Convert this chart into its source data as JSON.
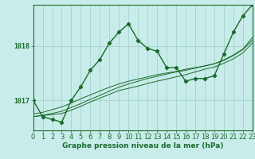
{
  "title": "Graphe pression niveau de la mer (hPa)",
  "bg_color": "#c8ecea",
  "grid_color": "#9dcec8",
  "line_color": "#1a6b2a",
  "xlim": [
    0,
    23
  ],
  "ylim": [
    1016.45,
    1018.75
  ],
  "yticks": [
    1017,
    1018
  ],
  "xticks": [
    0,
    1,
    2,
    3,
    4,
    5,
    6,
    7,
    8,
    9,
    10,
    11,
    12,
    13,
    14,
    15,
    16,
    17,
    18,
    19,
    20,
    21,
    22,
    23
  ],
  "series_main": [
    1017.0,
    1016.7,
    1016.65,
    1016.6,
    1017.0,
    1017.25,
    1017.55,
    1017.75,
    1018.05,
    1018.25,
    1018.4,
    1018.1,
    1017.95,
    1017.9,
    1017.6,
    1017.6,
    1017.35,
    1017.4,
    1017.4,
    1017.45,
    1017.85,
    1018.25,
    1018.55,
    1018.75
  ],
  "series_straight": [
    [
      1016.7,
      1016.72,
      1016.74,
      1016.76,
      1016.82,
      1016.89,
      1016.97,
      1017.04,
      1017.11,
      1017.18,
      1017.22,
      1017.26,
      1017.31,
      1017.35,
      1017.39,
      1017.43,
      1017.47,
      1017.52,
      1017.57,
      1017.61,
      1017.68,
      1017.76,
      1017.87,
      1018.05
    ],
    [
      1016.7,
      1016.73,
      1016.76,
      1016.8,
      1016.87,
      1016.94,
      1017.02,
      1017.09,
      1017.17,
      1017.24,
      1017.3,
      1017.35,
      1017.4,
      1017.44,
      1017.48,
      1017.52,
      1017.55,
      1017.59,
      1017.63,
      1017.67,
      1017.74,
      1017.83,
      1017.94,
      1018.15
    ],
    [
      1016.75,
      1016.78,
      1016.83,
      1016.88,
      1016.95,
      1017.03,
      1017.1,
      1017.17,
      1017.24,
      1017.3,
      1017.35,
      1017.39,
      1017.43,
      1017.47,
      1017.5,
      1017.53,
      1017.57,
      1017.6,
      1017.63,
      1017.67,
      1017.73,
      1017.82,
      1017.93,
      1018.1
    ]
  ],
  "marker": "D",
  "marker_size": 2.2,
  "lw_main": 1.0,
  "lw_straight": 0.7,
  "fontsize_label": 6.5,
  "fontsize_tick": 6.0
}
